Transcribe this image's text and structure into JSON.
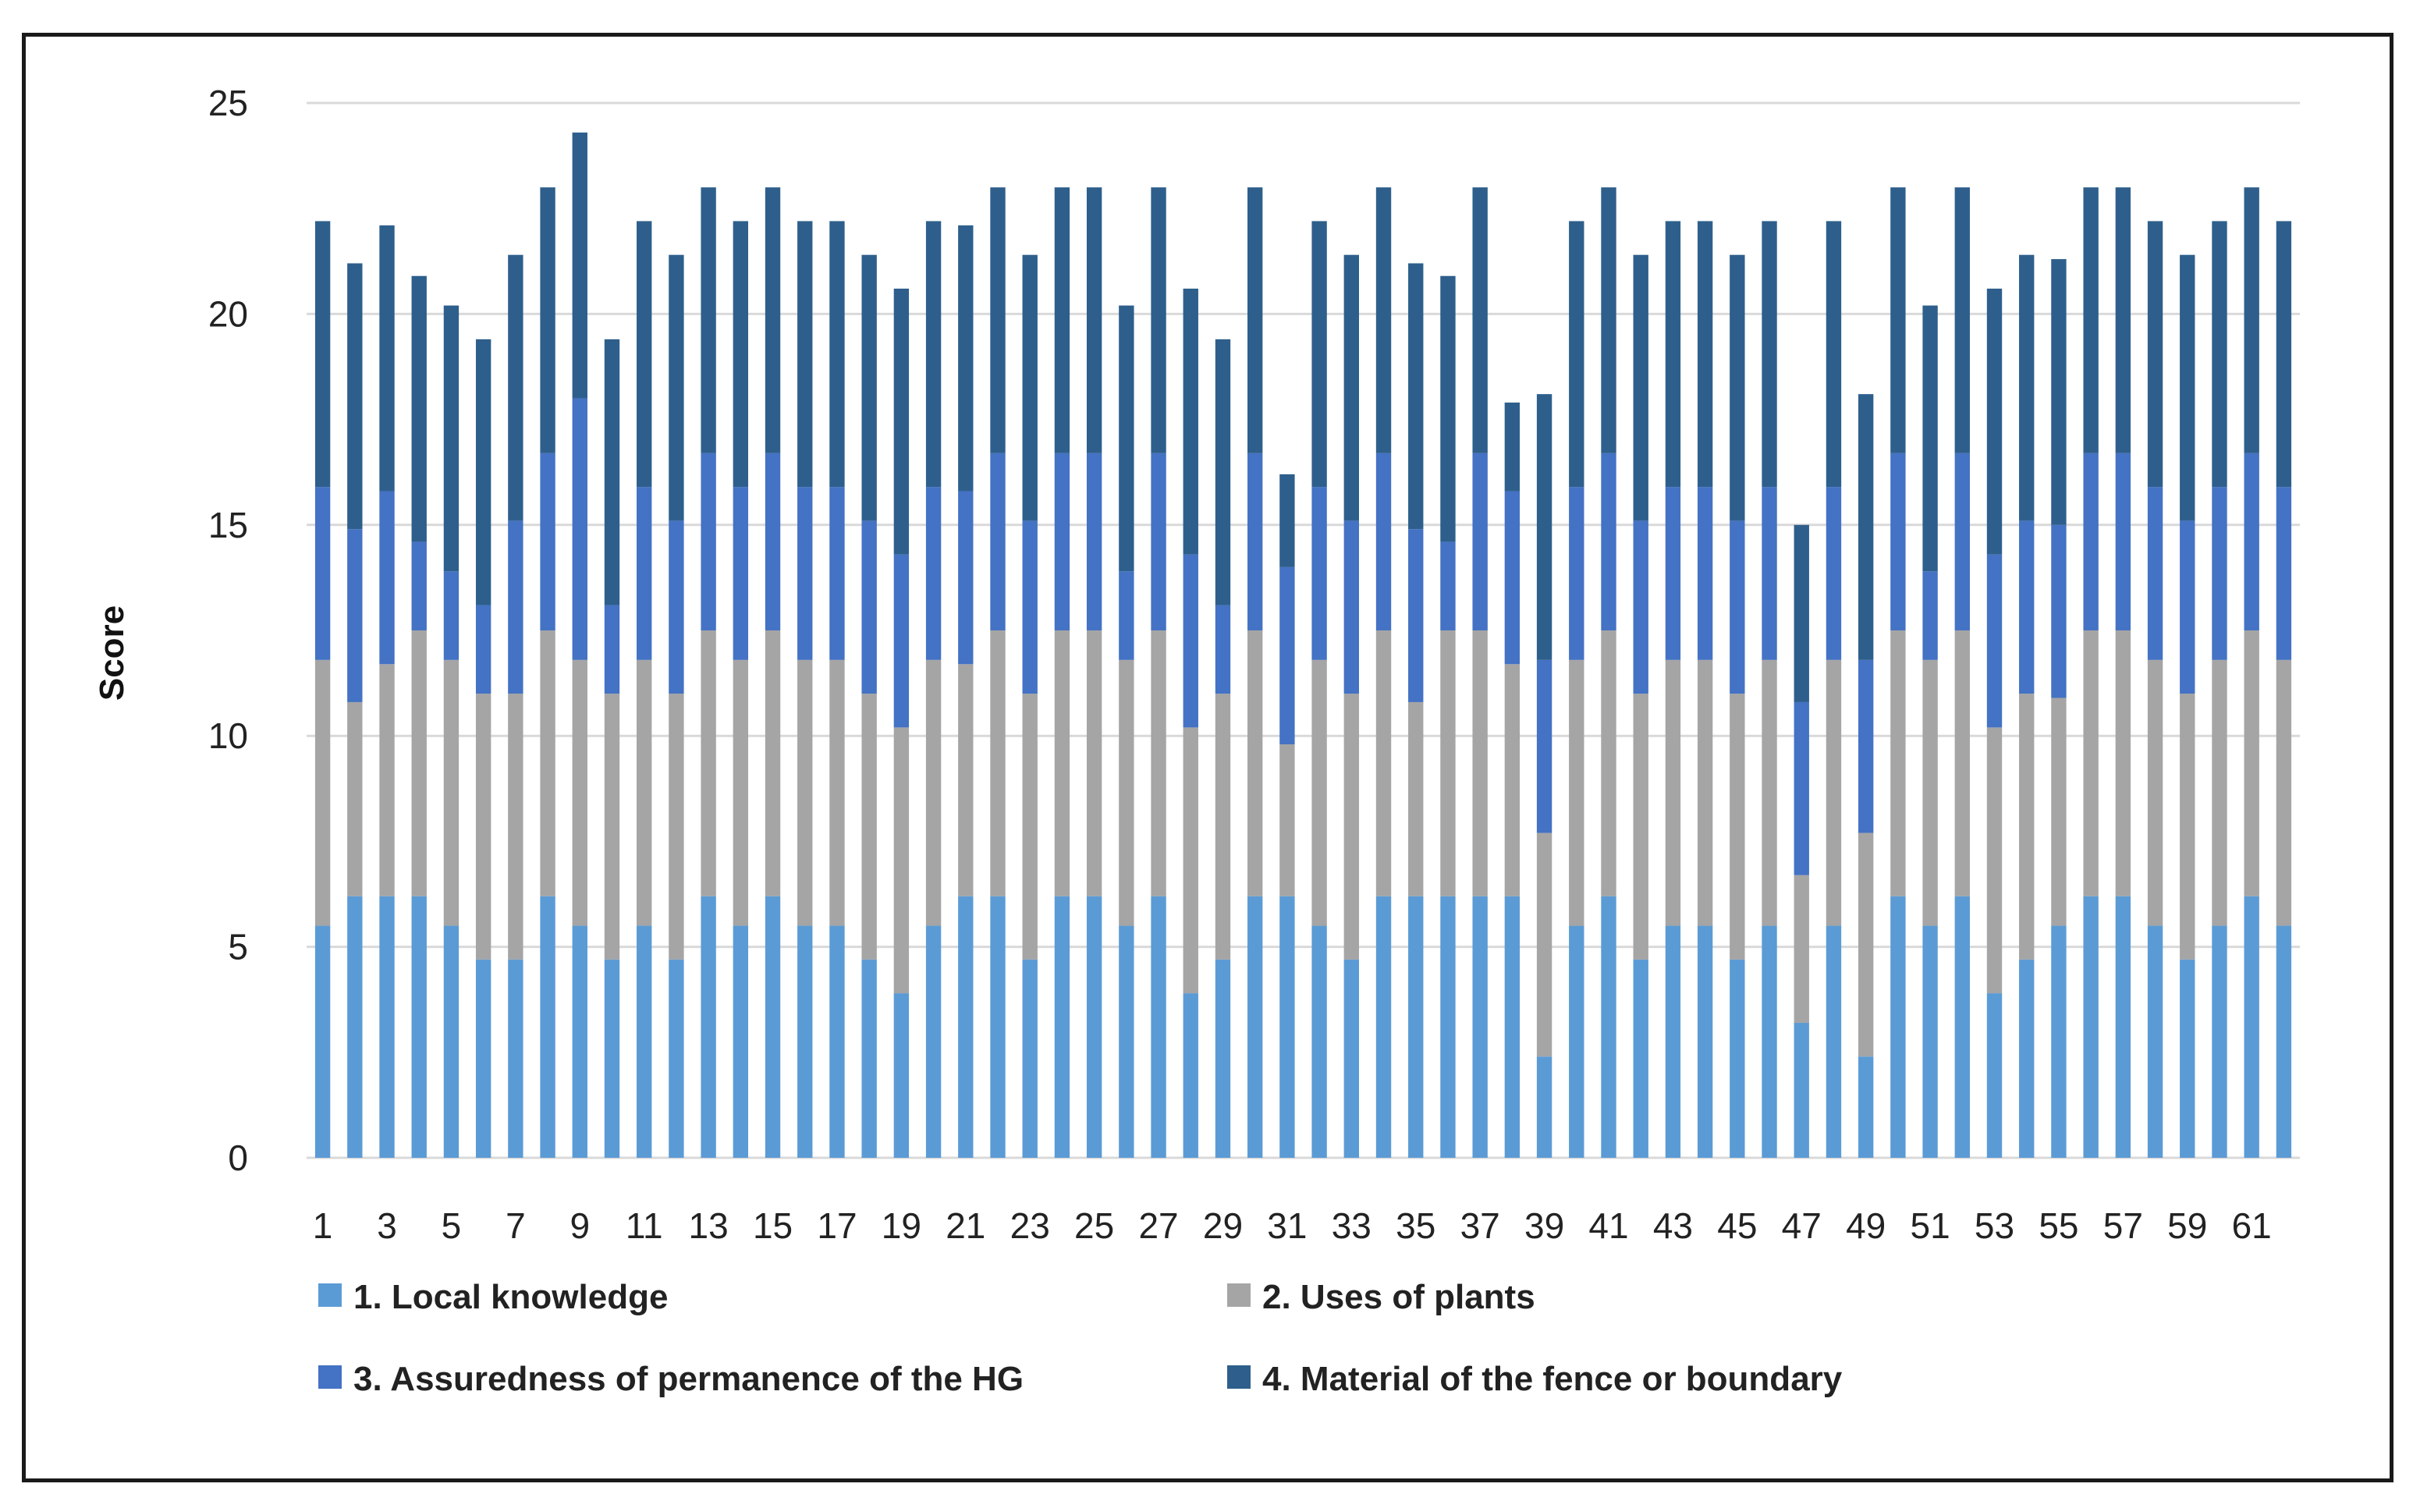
{
  "chart_data": {
    "type": "bar",
    "stacked": true,
    "ylabel": "Score",
    "xlabel": "",
    "ylim": [
      0,
      25
    ],
    "yticks": [
      0,
      5,
      10,
      15,
      20,
      25
    ],
    "grid": true,
    "legend_position": "bottom",
    "categories": [
      1,
      2,
      3,
      4,
      5,
      6,
      7,
      8,
      9,
      10,
      11,
      12,
      13,
      14,
      15,
      16,
      17,
      18,
      19,
      20,
      21,
      22,
      23,
      24,
      25,
      26,
      27,
      28,
      29,
      30,
      31,
      32,
      33,
      34,
      35,
      36,
      37,
      38,
      39,
      40,
      41,
      42,
      43,
      44,
      45,
      46,
      47,
      48,
      49,
      50,
      51,
      52,
      53,
      54,
      55,
      56,
      57,
      58,
      59,
      60,
      61,
      62
    ],
    "tick_labels": [
      "1",
      "3",
      "5",
      "7",
      "9",
      "11",
      "13",
      "15",
      "17",
      "19",
      "21",
      "23",
      "25",
      "27",
      "29",
      "31",
      "33",
      "35",
      "37",
      "39",
      "41",
      "43",
      "45",
      "47",
      "49",
      "51",
      "53",
      "55",
      "57",
      "59",
      "61"
    ],
    "series": [
      {
        "name": "1. Local knowledge",
        "color": "#5b9bd5",
        "values": [
          5.5,
          6.2,
          6.2,
          6.2,
          5.5,
          4.7,
          4.7,
          6.2,
          5.5,
          4.7,
          5.5,
          4.7,
          6.2,
          5.5,
          6.2,
          5.5,
          5.5,
          4.7,
          3.9,
          5.5,
          6.2,
          6.2,
          4.7,
          6.2,
          6.2,
          5.5,
          6.2,
          3.9,
          4.7,
          6.2,
          6.2,
          5.5,
          4.7,
          6.2,
          6.2,
          6.2,
          6.2,
          6.2,
          2.4,
          5.5,
          6.2,
          4.7,
          5.5,
          5.5,
          4.7,
          5.5,
          3.2,
          5.5,
          2.4,
          6.2,
          5.5,
          6.2,
          3.9,
          4.7,
          5.5,
          6.2,
          6.2,
          5.5,
          4.7,
          5.5,
          6.2,
          5.5
        ]
      },
      {
        "name": "2. Uses of plants",
        "color": "#a5a5a5",
        "values": [
          6.3,
          4.6,
          5.5,
          6.3,
          6.3,
          6.3,
          6.3,
          6.3,
          6.3,
          6.3,
          6.3,
          6.3,
          6.3,
          6.3,
          6.3,
          6.3,
          6.3,
          6.3,
          6.3,
          6.3,
          5.5,
          6.3,
          6.3,
          6.3,
          6.3,
          6.3,
          6.3,
          6.3,
          6.3,
          6.3,
          3.6,
          6.3,
          6.3,
          6.3,
          4.6,
          6.3,
          6.3,
          5.5,
          5.3,
          6.3,
          6.3,
          6.3,
          6.3,
          6.3,
          6.3,
          6.3,
          3.5,
          6.3,
          5.3,
          6.3,
          6.3,
          6.3,
          6.3,
          6.3,
          5.4,
          6.3,
          6.3,
          6.3,
          6.3,
          6.3,
          6.3,
          6.3
        ]
      },
      {
        "name": "3. Assuredness of permanence of the HG",
        "color": "#4472c4",
        "values": [
          4.1,
          4.1,
          4.1,
          2.1,
          2.1,
          2.1,
          4.1,
          4.2,
          6.2,
          2.1,
          4.1,
          4.1,
          4.2,
          4.1,
          4.2,
          4.1,
          4.1,
          4.1,
          4.1,
          4.1,
          4.1,
          4.2,
          4.1,
          4.2,
          4.2,
          2.1,
          4.2,
          4.1,
          2.1,
          4.2,
          4.2,
          4.1,
          4.1,
          4.2,
          4.1,
          2.1,
          4.2,
          4.1,
          4.1,
          4.1,
          4.2,
          4.1,
          4.1,
          4.1,
          4.1,
          4.1,
          4.1,
          4.1,
          4.1,
          4.2,
          2.1,
          4.2,
          4.1,
          4.1,
          4.1,
          4.2,
          4.2,
          4.1,
          4.1,
          4.1,
          4.2,
          4.1
        ]
      },
      {
        "name": "4. Material of the fence or boundary",
        "color": "#2e5f8c",
        "values": [
          6.3,
          6.3,
          6.3,
          6.3,
          6.3,
          6.3,
          6.3,
          6.3,
          6.3,
          6.3,
          6.3,
          6.3,
          6.3,
          6.3,
          6.3,
          6.3,
          6.3,
          6.3,
          6.3,
          6.3,
          6.3,
          6.3,
          6.3,
          6.3,
          6.3,
          6.3,
          6.3,
          6.3,
          6.3,
          6.3,
          2.2,
          6.3,
          6.3,
          6.3,
          6.3,
          6.3,
          6.3,
          2.1,
          6.3,
          6.3,
          6.3,
          6.3,
          6.3,
          6.3,
          6.3,
          6.3,
          4.2,
          6.3,
          6.3,
          6.3,
          6.3,
          6.3,
          6.3,
          6.3,
          6.3,
          6.3,
          6.3,
          6.3,
          6.3,
          6.3,
          6.3,
          6.3
        ]
      }
    ]
  }
}
